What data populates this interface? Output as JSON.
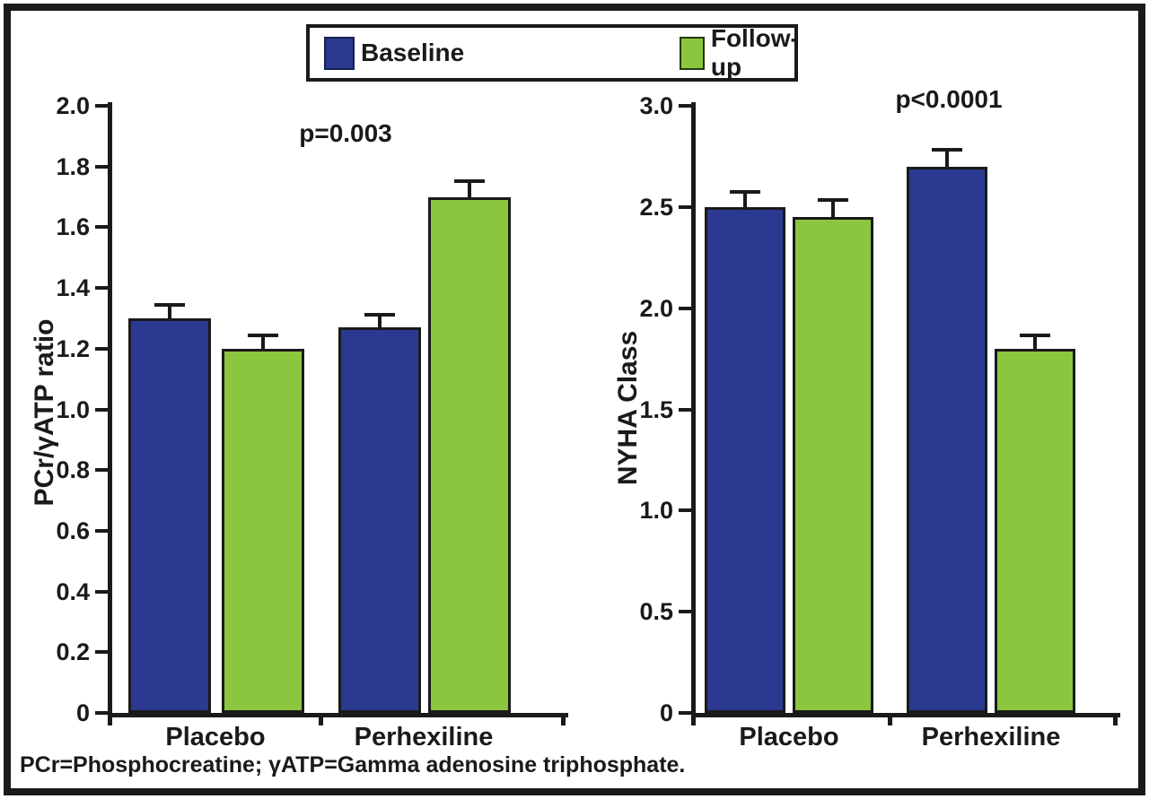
{
  "legend": {
    "items": [
      {
        "label": "Baseline",
        "color": "#2b3a90"
      },
      {
        "label": "Follow-up",
        "color": "#8cc63e"
      }
    ]
  },
  "footer": "PCr=Phosphocreatine; γATP=Gamma adenosine triphosphate.",
  "colors": {
    "baseline": "#2b3a90",
    "followup": "#8cc63e",
    "line": "#1a1a1a"
  },
  "chart_data": [
    {
      "type": "bar",
      "title": "",
      "ylabel": "PCr/γATP ratio",
      "xlabel": "",
      "annotation": "p=0.003",
      "categories": [
        "Placebo",
        "Perhexiline"
      ],
      "series": [
        {
          "name": "Baseline",
          "color": "#2b3a90",
          "values": [
            1.3,
            1.27
          ],
          "errors": [
            0.04,
            0.04
          ]
        },
        {
          "name": "Follow-up",
          "color": "#8cc63e",
          "values": [
            1.2,
            1.7
          ],
          "errors": [
            0.04,
            0.05
          ]
        }
      ],
      "ylim": [
        0,
        2.0
      ],
      "yticks": [
        "0",
        "0.2",
        "0.4",
        "0.6",
        "0.8",
        "1.0",
        "1.2",
        "1.4",
        "1.6",
        "1.8",
        "2.0"
      ],
      "grid": false,
      "legend_position": "top"
    },
    {
      "type": "bar",
      "title": "",
      "ylabel": "NYHA Class",
      "xlabel": "",
      "annotation": "p<0.0001",
      "categories": [
        "Placebo",
        "Perhexiline"
      ],
      "series": [
        {
          "name": "Baseline",
          "color": "#2b3a90",
          "values": [
            2.5,
            2.7
          ],
          "errors": [
            0.07,
            0.08
          ]
        },
        {
          "name": "Follow-up",
          "color": "#8cc63e",
          "values": [
            2.45,
            1.8
          ],
          "errors": [
            0.08,
            0.06
          ]
        }
      ],
      "ylim": [
        0,
        3.0
      ],
      "yticks": [
        "0",
        "0.5",
        "1.0",
        "1.5",
        "2.0",
        "2.5",
        "3.0"
      ],
      "grid": false,
      "legend_position": "top"
    }
  ]
}
